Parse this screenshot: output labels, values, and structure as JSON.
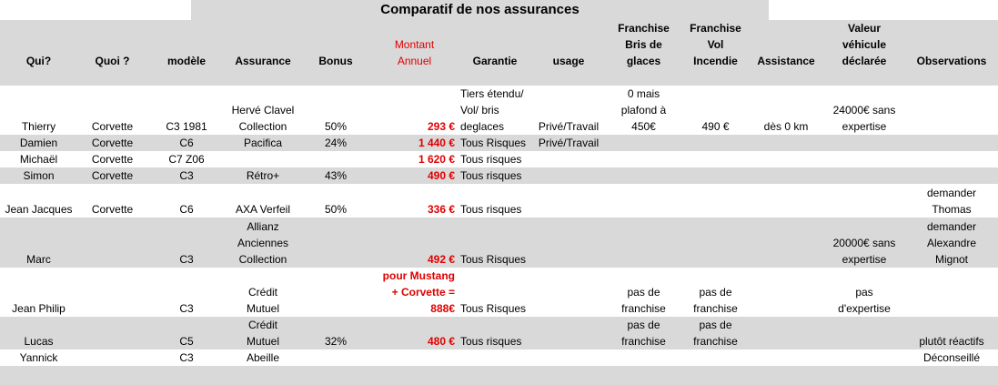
{
  "header": {
    "title": "Comparatif de nos assurances"
  },
  "table": {
    "columns": [
      "Qui?",
      "Quoi ?",
      "modèle",
      "Assurance",
      "Bonus",
      "Montant\nAnnuel",
      "Garantie",
      "usage",
      "Franchise\nBris de glaces",
      "Franchise Vol\nIncendie",
      "Assistance",
      "Valeur\nvéhicule\ndéclarée",
      "Observations"
    ],
    "rows": [
      [
        "Thierry",
        "Corvette",
        "C3 1981",
        "Hervé Clavel\nCollection",
        "50%",
        "293 €",
        "Tiers étendu/\nVol/ bris\ndeglaces",
        "Privé/Travail",
        "0 mais\nplafond à\n450€",
        "490 €",
        "dès 0 km",
        "24000€ sans\nexpertise",
        null
      ],
      [
        "Damien",
        "Corvette",
        "C6",
        "Pacifica",
        "24%",
        "1 440 €",
        "Tous Risques",
        "Privé/Travail",
        null,
        null,
        null,
        null,
        null
      ],
      [
        "Michaël",
        "Corvette",
        "C7 Z06",
        null,
        null,
        "1 620 €",
        "Tous risques",
        null,
        null,
        null,
        null,
        null,
        null
      ],
      [
        "Simon",
        "Corvette",
        "C3",
        "Rétro+",
        "43%",
        "490 €",
        "Tous risques",
        null,
        null,
        null,
        null,
        null,
        null
      ],
      [
        "Jean Jacques",
        "Corvette",
        "C6",
        "AXA Verfeil",
        "50%",
        "336 €",
        "Tous risques",
        null,
        null,
        null,
        null,
        null,
        "demander\nThomas"
      ],
      [
        "Marc",
        null,
        "C3",
        "Allianz\nAnciennes\nCollection",
        null,
        "492 €",
        "Tous Risques",
        null,
        null,
        null,
        null,
        "20000€ sans\nexpertise",
        "demander\nAlexandre\nMignot"
      ],
      [
        "Jean Philip",
        null,
        "C3",
        "Crédit\nMutuel",
        null,
        "pour Mustang\n+ Corvette =\n888€",
        "Tous Risques",
        null,
        "pas de\nfranchise",
        "pas de\nfranchise",
        null,
        "pas\nd'expertise",
        null
      ],
      [
        "Lucas",
        null,
        "C5",
        "Crédit\nMutuel",
        "32%",
        "480 €",
        "Tous risques",
        null,
        "pas de\nfranchise",
        "pas de\nfranchise",
        null,
        null,
        "plutôt réactifs"
      ],
      [
        "Yannick",
        null,
        "C3",
        "Abeille",
        null,
        null,
        null,
        null,
        null,
        null,
        null,
        null,
        "Déconseillé"
      ]
    ]
  }
}
